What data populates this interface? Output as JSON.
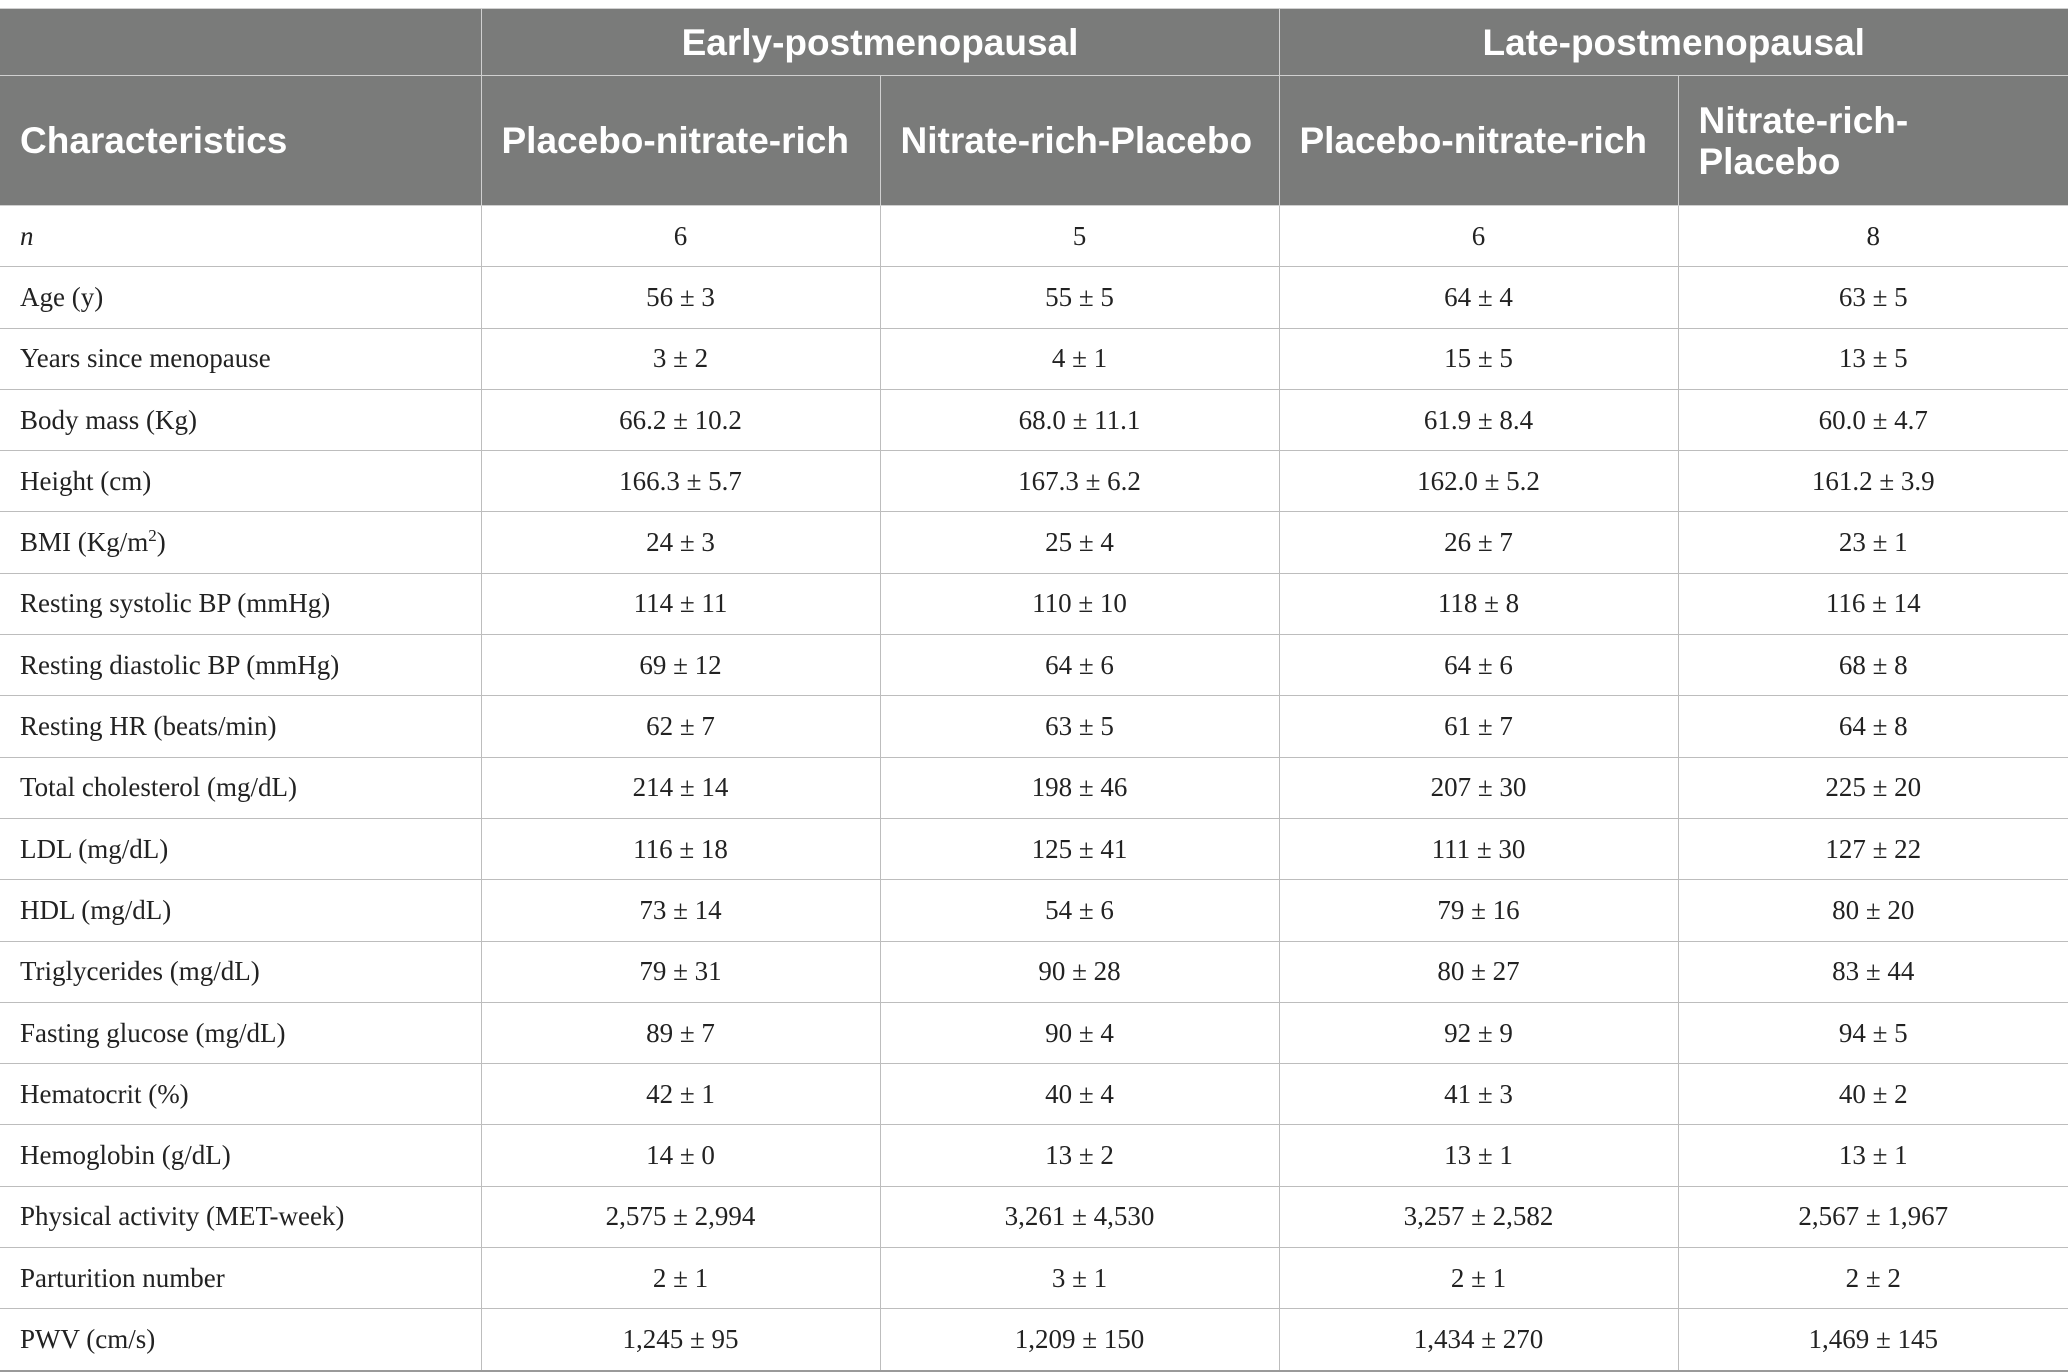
{
  "table": {
    "group_headers": [
      "",
      "Early-postmenopausal",
      "Late-postmenopausal"
    ],
    "column_headers": [
      "Characteristics",
      "Placebo-nitrate-rich",
      "Nitrate-rich-Placebo",
      "Placebo-nitrate-rich",
      "Nitrate-rich-Placebo"
    ],
    "rows": [
      {
        "label": "n",
        "values": [
          "6",
          "5",
          "6",
          "8"
        ]
      },
      {
        "label": "Age (y)",
        "values": [
          "56 ± 3",
          "55 ± 5",
          "64 ± 4",
          "63 ± 5"
        ]
      },
      {
        "label": "Years since menopause",
        "values": [
          "3 ± 2",
          "4 ± 1",
          "15 ± 5",
          "13 ± 5"
        ]
      },
      {
        "label": "Body mass (Kg)",
        "values": [
          "66.2 ± 10.2",
          "68.0 ± 11.1",
          "61.9 ± 8.4",
          "60.0 ± 4.7"
        ]
      },
      {
        "label": "Height (cm)",
        "values": [
          "166.3 ± 5.7",
          "167.3 ± 6.2",
          "162.0 ± 5.2",
          "161.2 ± 3.9"
        ]
      },
      {
        "label": "BMI (Kg/m",
        "label_sup": "2",
        "label_suffix": ")",
        "values": [
          "24 ± 3",
          "25 ± 4",
          "26 ± 7",
          "23 ± 1"
        ]
      },
      {
        "label": "Resting systolic BP (mmHg)",
        "values": [
          "114 ± 11",
          "110 ± 10",
          "118 ± 8",
          "116 ± 14"
        ]
      },
      {
        "label": "Resting diastolic BP (mmHg)",
        "values": [
          "69 ± 12",
          "64 ± 6",
          "64 ± 6",
          "68 ± 8"
        ]
      },
      {
        "label": "Resting HR (beats/min)",
        "values": [
          "62 ± 7",
          "63 ± 5",
          "61 ± 7",
          "64 ± 8"
        ]
      },
      {
        "label": "Total cholesterol (mg/dL)",
        "values": [
          "214 ± 14",
          "198 ± 46",
          "207 ± 30",
          "225 ± 20"
        ]
      },
      {
        "label": "LDL (mg/dL)",
        "values": [
          "116 ± 18",
          "125 ± 41",
          "111 ± 30",
          "127 ± 22"
        ]
      },
      {
        "label": "HDL (mg/dL)",
        "values": [
          "73 ± 14",
          "54 ± 6",
          "79 ± 16",
          "80 ± 20"
        ]
      },
      {
        "label": "Triglycerides (mg/dL)",
        "values": [
          "79 ± 31",
          "90 ± 28",
          "80 ± 27",
          "83 ± 44"
        ]
      },
      {
        "label": "Fasting glucose (mg/dL)",
        "values": [
          "89 ± 7",
          "90 ± 4",
          "92 ± 9",
          "94 ± 5"
        ]
      },
      {
        "label": "Hematocrit (%)",
        "values": [
          "42 ± 1",
          "40 ± 4",
          "41 ± 3",
          "40 ± 2"
        ]
      },
      {
        "label": "Hemoglobin (g/dL)",
        "values": [
          "14 ± 0",
          "13 ± 2",
          "13 ± 1",
          "13 ± 1"
        ]
      },
      {
        "label": "Physical activity (MET-week)",
        "values": [
          "2,575 ± 2,994",
          "3,261 ± 4,530",
          "3,257 ± 2,582",
          "2,567 ± 1,967"
        ]
      },
      {
        "label": "Parturition number",
        "values": [
          "2 ± 1",
          "3 ± 1",
          "2 ± 1",
          "2 ± 2"
        ]
      },
      {
        "label": "PWV (cm/s)",
        "values": [
          "1,245 ± 95",
          "1,209 ± 150",
          "1,434 ± 270",
          "1,469 ± 145"
        ]
      }
    ]
  },
  "colors": {
    "header_background": "#7a7b7a",
    "header_text": "#ffffff",
    "grid_line": "#bdbdbd"
  }
}
